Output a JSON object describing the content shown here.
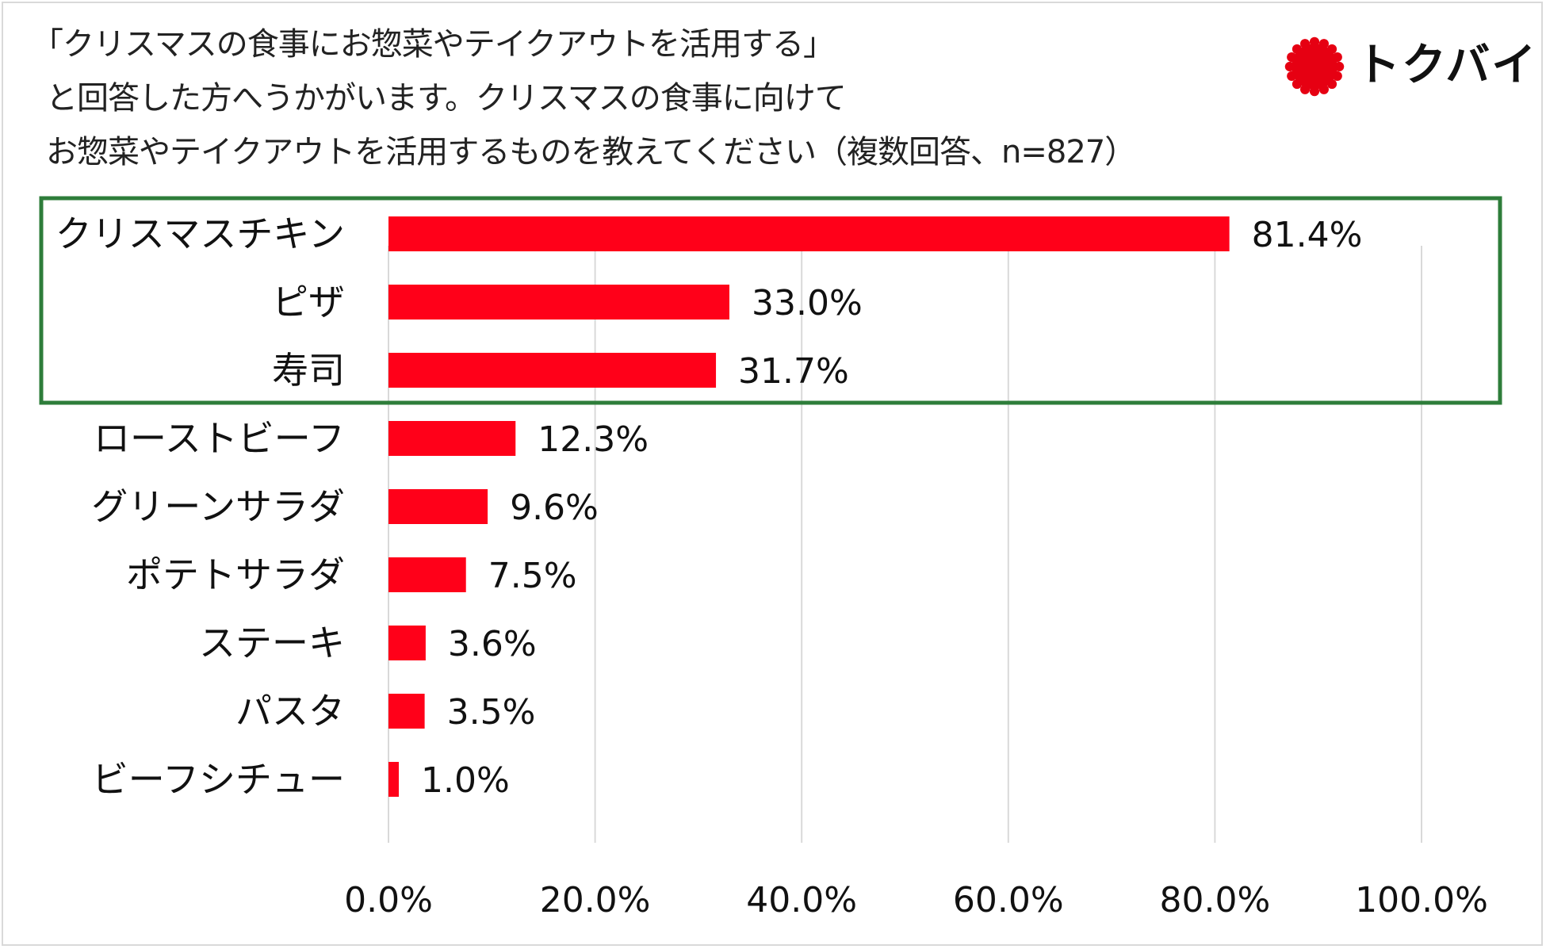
{
  "title_lines": [
    "「クリスマスの食事にお惣菜やテイクアウトを活用する」",
    "と回答した方へうかがいます。クリスマスの食事に向けて",
    "お惣菜やテイクアウトを活用するものを教えてください（複数回答、n=827）"
  ],
  "brand": {
    "name": "トクバイ",
    "logo_color": "#e60012"
  },
  "colors": {
    "bar": "#ff0019",
    "highlight_box": "#2e7d3a",
    "grid": "#d9d9d9"
  },
  "chart_data": {
    "type": "bar",
    "orientation": "horizontal",
    "categories": [
      "クリスマスチキン",
      "ピザ",
      "寿司",
      "ローストビーフ",
      "グリーンサラダ",
      "ポテトサラダ",
      "ステーキ",
      "パスタ",
      "ビーフシチュー"
    ],
    "values": [
      81.4,
      33.0,
      31.7,
      12.3,
      9.6,
      7.5,
      3.6,
      3.5,
      1.0
    ],
    "value_labels": [
      "81.4%",
      "33.0%",
      "31.7%",
      "12.3%",
      "9.6%",
      "7.5%",
      "3.6%",
      "3.5%",
      "1.0%"
    ],
    "xlim": [
      0,
      100
    ],
    "xticks": [
      0,
      20,
      40,
      60,
      80,
      100
    ],
    "xtick_labels": [
      "0.0%",
      "20.0%",
      "40.0%",
      "60.0%",
      "80.0%",
      "100.0%"
    ],
    "grid": true,
    "highlighted_categories": [
      "クリスマスチキン",
      "ピザ",
      "寿司"
    ]
  }
}
